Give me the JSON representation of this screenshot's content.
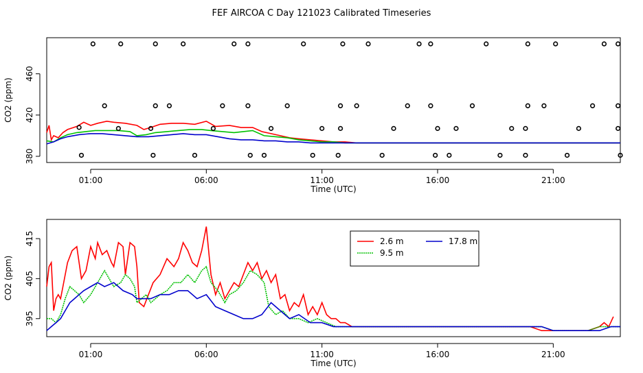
{
  "title": "FEF AIRCOA C  Day 121023  Calibrated Timeseries",
  "chart_data": [
    {
      "type": "scatter+line",
      "xlabel": "Time (UTC)",
      "ylabel": "CO2 (ppm)",
      "x_unit": "hours UTC",
      "xlim": [
        -0.9,
        23.9
      ],
      "ylim": [
        374,
        495
      ],
      "x_ticks": [
        1,
        6,
        11,
        16,
        21
      ],
      "x_tick_labels": [
        "01:00",
        "06:00",
        "11:00",
        "16:00",
        "21:00"
      ],
      "y_ticks": [
        380,
        420,
        460
      ],
      "y_tick_labels": [
        "380",
        "420",
        "460"
      ],
      "grid": false,
      "calibration_points": {
        "name": "",
        "x": [
          1.1,
          2.3,
          3.8,
          5.0,
          7.2,
          7.8,
          10.2,
          11.9,
          13.0,
          15.2,
          15.7,
          18.1,
          19.9,
          21.1,
          23.2,
          23.8,
          0.6,
          3.7,
          5.5,
          7.9,
          8.5,
          10.6,
          11.7,
          13.6,
          15.9,
          16.5,
          18.7,
          19.8,
          21.6,
          23.9,
          0.5,
          2.2,
          3.6,
          6.3,
          8.8,
          11.0,
          11.8,
          14.1,
          16.0,
          16.8,
          19.2,
          19.8,
          22.1,
          23.8,
          1.6,
          3.8,
          4.4,
          6.7,
          7.8,
          9.5,
          11.8,
          12.5,
          14.7,
          15.7,
          17.5,
          19.9,
          20.6,
          22.7,
          23.8
        ],
        "y": [
          489,
          489,
          489,
          489,
          489,
          489,
          489,
          489,
          489,
          489,
          489,
          489,
          489,
          489,
          489,
          489,
          381,
          381,
          381,
          381,
          381,
          381,
          381,
          381,
          381,
          381,
          381,
          381,
          381,
          381,
          408,
          407,
          407,
          407,
          407,
          407,
          407,
          407,
          407,
          407,
          407,
          407,
          407,
          407,
          429,
          429,
          429,
          429,
          429,
          429,
          429,
          429,
          429,
          429,
          429,
          429,
          429,
          429,
          429
        ]
      },
      "series": [
        {
          "name": "2.6 m",
          "color": "#ff0000",
          "x": [
            -0.9,
            -0.8,
            -0.7,
            -0.6,
            -0.4,
            -0.2,
            0.0,
            0.4,
            0.7,
            1.0,
            1.3,
            1.7,
            2.0,
            2.5,
            3.0,
            3.3,
            3.6,
            4.0,
            4.5,
            5.0,
            5.5,
            6.0,
            6.4,
            7.0,
            7.5,
            8.0,
            8.4,
            8.8,
            9.2,
            9.6,
            10.0,
            10.5,
            11.0,
            11.5,
            12.0,
            12.5,
            13.0,
            14.0,
            16.0,
            18.0,
            20.0,
            21.0,
            22.0,
            23.0,
            23.5,
            23.9
          ],
          "y": [
            403,
            410,
            396,
            400,
            398,
            403,
            406,
            409,
            413,
            410,
            412,
            414,
            413,
            412,
            410,
            406,
            408,
            411,
            412,
            412,
            411,
            414,
            409,
            410,
            408,
            408,
            404,
            402,
            400,
            398,
            397,
            396,
            395,
            394,
            394,
            393,
            393,
            393,
            393,
            393,
            393,
            393,
            393,
            393,
            393,
            393
          ]
        },
        {
          "name": "9.5 m",
          "color": "#00c000",
          "x": [
            -0.9,
            -0.6,
            -0.3,
            0.0,
            0.4,
            0.8,
            1.2,
            1.7,
            2.2,
            2.7,
            3.0,
            3.4,
            3.8,
            4.3,
            4.8,
            5.3,
            5.8,
            6.2,
            6.7,
            7.2,
            7.6,
            8.0,
            8.5,
            9.0,
            9.5,
            10.0,
            10.5,
            11.0,
            11.5,
            12.0,
            13.0,
            14.0,
            16.0,
            18.0,
            20.0,
            21.0,
            22.0,
            23.0,
            23.5,
            23.9
          ],
          "y": [
            395,
            394,
            398,
            401,
            403,
            404,
            405,
            405,
            405,
            404,
            400,
            401,
            403,
            404,
            405,
            406,
            406,
            405,
            404,
            403,
            404,
            405,
            400,
            399,
            398,
            396,
            395,
            394,
            394,
            393,
            393,
            393,
            393,
            393,
            393,
            393,
            393,
            393,
            393,
            393
          ]
        },
        {
          "name": "17.8 m",
          "color": "#0000cc",
          "x": [
            -0.9,
            -0.6,
            -0.3,
            0.0,
            0.5,
            1.0,
            1.5,
            2.0,
            2.5,
            3.0,
            3.5,
            4.0,
            4.5,
            5.0,
            5.5,
            6.0,
            6.5,
            7.0,
            7.5,
            8.0,
            8.5,
            9.0,
            9.5,
            10.0,
            10.5,
            11.0,
            12.0,
            13.0,
            14.0,
            16.0,
            18.0,
            20.0,
            21.0,
            22.0,
            23.0,
            23.5,
            23.9
          ],
          "y": [
            392,
            394,
            397,
            399,
            401,
            402,
            402,
            401,
            400,
            399,
            399,
            400,
            401,
            402,
            401,
            401,
            399,
            397,
            396,
            396,
            395,
            395,
            394,
            394,
            393,
            393,
            393,
            393,
            393,
            393,
            393,
            393,
            393,
            393,
            393,
            393,
            393
          ]
        }
      ]
    },
    {
      "type": "line",
      "xlabel": "Time (UTC)",
      "ylabel": "CO2 (ppm)",
      "x_unit": "hours UTC",
      "xlim": [
        -0.9,
        23.9
      ],
      "ylim": [
        390.5,
        419.8
      ],
      "x_ticks": [
        1,
        6,
        11,
        16,
        21
      ],
      "x_tick_labels": [
        "01:00",
        "06:00",
        "11:00",
        "16:00",
        "21:00"
      ],
      "y_ticks": [
        395,
        405,
        415
      ],
      "y_tick_labels": [
        "395",
        "405",
        "415"
      ],
      "grid": false,
      "legend": {
        "position": "top-center",
        "entries": [
          "2.6 m",
          "9.5 m",
          "17.8 m"
        ]
      },
      "series": [
        {
          "name": "2.6 m",
          "color": "#ff0000",
          "x": [
            -0.9,
            -0.8,
            -0.7,
            -0.6,
            -0.5,
            -0.4,
            -0.3,
            -0.2,
            0.0,
            0.2,
            0.4,
            0.6,
            0.8,
            1.0,
            1.2,
            1.3,
            1.5,
            1.7,
            1.9,
            2.0,
            2.2,
            2.4,
            2.5,
            2.7,
            2.9,
            3.0,
            3.1,
            3.3,
            3.5,
            3.7,
            4.0,
            4.3,
            4.6,
            4.8,
            5.0,
            5.2,
            5.4,
            5.6,
            5.8,
            6.0,
            6.2,
            6.4,
            6.6,
            6.8,
            7.0,
            7.2,
            7.4,
            7.6,
            7.8,
            8.0,
            8.2,
            8.4,
            8.6,
            8.8,
            9.0,
            9.2,
            9.4,
            9.6,
            9.8,
            10.0,
            10.2,
            10.4,
            10.6,
            10.8,
            11.0,
            11.2,
            11.4,
            11.6,
            11.8,
            12.0,
            12.3,
            12.6,
            13.0,
            13.5,
            14.0,
            15.0,
            16.0,
            17.0,
            18.0,
            19.0,
            20.0,
            20.5,
            21.0,
            21.5,
            22.0,
            22.5,
            23.0,
            23.2,
            23.4,
            23.6
          ],
          "y": [
            403,
            408,
            409,
            397,
            400,
            401,
            400,
            403,
            409,
            412,
            413,
            405,
            407,
            413,
            410,
            414,
            411,
            412,
            409,
            408,
            414,
            413,
            406,
            414,
            413,
            408,
            399,
            398,
            401,
            404,
            406,
            410,
            408,
            410,
            414,
            412,
            409,
            408,
            412,
            418,
            406,
            401,
            404,
            400,
            402,
            404,
            403,
            406,
            409,
            407,
            409,
            405,
            407,
            404,
            406,
            400,
            401,
            397,
            399,
            398,
            401,
            396,
            398,
            396,
            399,
            396,
            395,
            395,
            394,
            394,
            393,
            393,
            393,
            393,
            393,
            393,
            393,
            393,
            393,
            393,
            393,
            392,
            392,
            392,
            392,
            392,
            393,
            394,
            393,
            395.5
          ]
        },
        {
          "name": "9.5 m",
          "color": "#00c000",
          "x": [
            -0.9,
            -0.7,
            -0.5,
            -0.3,
            -0.1,
            0.1,
            0.3,
            0.5,
            0.7,
            1.0,
            1.3,
            1.6,
            1.8,
            2.0,
            2.3,
            2.5,
            2.7,
            2.9,
            3.0,
            3.2,
            3.4,
            3.6,
            3.8,
            4.0,
            4.3,
            4.6,
            4.9,
            5.2,
            5.5,
            5.8,
            6.0,
            6.2,
            6.5,
            6.8,
            7.0,
            7.3,
            7.6,
            7.9,
            8.2,
            8.5,
            8.7,
            9.0,
            9.3,
            9.6,
            10.0,
            10.4,
            10.8,
            11.2,
            11.6,
            12.0,
            12.5,
            13.0,
            14.0,
            15.0,
            16.0,
            17.0,
            18.0,
            19.0,
            20.0,
            20.5,
            21.0,
            21.5,
            22.0,
            22.5,
            23.0,
            23.3,
            23.6,
            23.9
          ],
          "y": [
            395,
            395,
            394,
            396,
            400,
            403,
            402,
            401,
            399,
            401,
            404,
            407,
            405,
            403,
            404,
            406,
            405,
            403,
            399,
            400,
            401,
            399,
            400,
            401,
            402,
            404,
            404,
            406,
            404,
            407,
            408,
            404,
            402,
            399,
            401,
            402,
            404,
            407,
            406,
            404,
            398,
            396,
            397,
            395,
            395,
            394,
            395,
            394,
            393,
            393,
            393,
            393,
            393,
            393,
            393,
            393,
            393,
            393,
            393,
            393,
            392,
            392,
            392,
            392,
            393,
            393,
            393,
            393
          ]
        },
        {
          "name": "17.8 m",
          "color": "#0000cc",
          "x": [
            -0.9,
            -0.7,
            -0.5,
            -0.3,
            -0.1,
            0.1,
            0.3,
            0.5,
            0.7,
            1.0,
            1.3,
            1.6,
            2.0,
            2.4,
            2.8,
            3.0,
            3.3,
            3.6,
            4.0,
            4.4,
            4.8,
            5.2,
            5.6,
            6.0,
            6.4,
            6.8,
            7.2,
            7.6,
            8.0,
            8.4,
            8.8,
            9.2,
            9.6,
            10.0,
            10.5,
            11.0,
            11.5,
            12.0,
            12.5,
            13.0,
            14.0,
            15.0,
            16.0,
            17.0,
            18.0,
            19.0,
            20.0,
            20.5,
            21.0,
            21.5,
            22.0,
            22.5,
            23.0,
            23.5,
            23.9
          ],
          "y": [
            392,
            393,
            394,
            395,
            397,
            399,
            400,
            401,
            402,
            403,
            404,
            403,
            404,
            402,
            401,
            400,
            400,
            400,
            401,
            401,
            402,
            402,
            400,
            401,
            398,
            397,
            396,
            395,
            395,
            396,
            399,
            397,
            395,
            396,
            394,
            394,
            393,
            393,
            393,
            393,
            393,
            393,
            393,
            393,
            393,
            393,
            393,
            393,
            392,
            392,
            392,
            392,
            392,
            393,
            393
          ]
        }
      ]
    }
  ]
}
